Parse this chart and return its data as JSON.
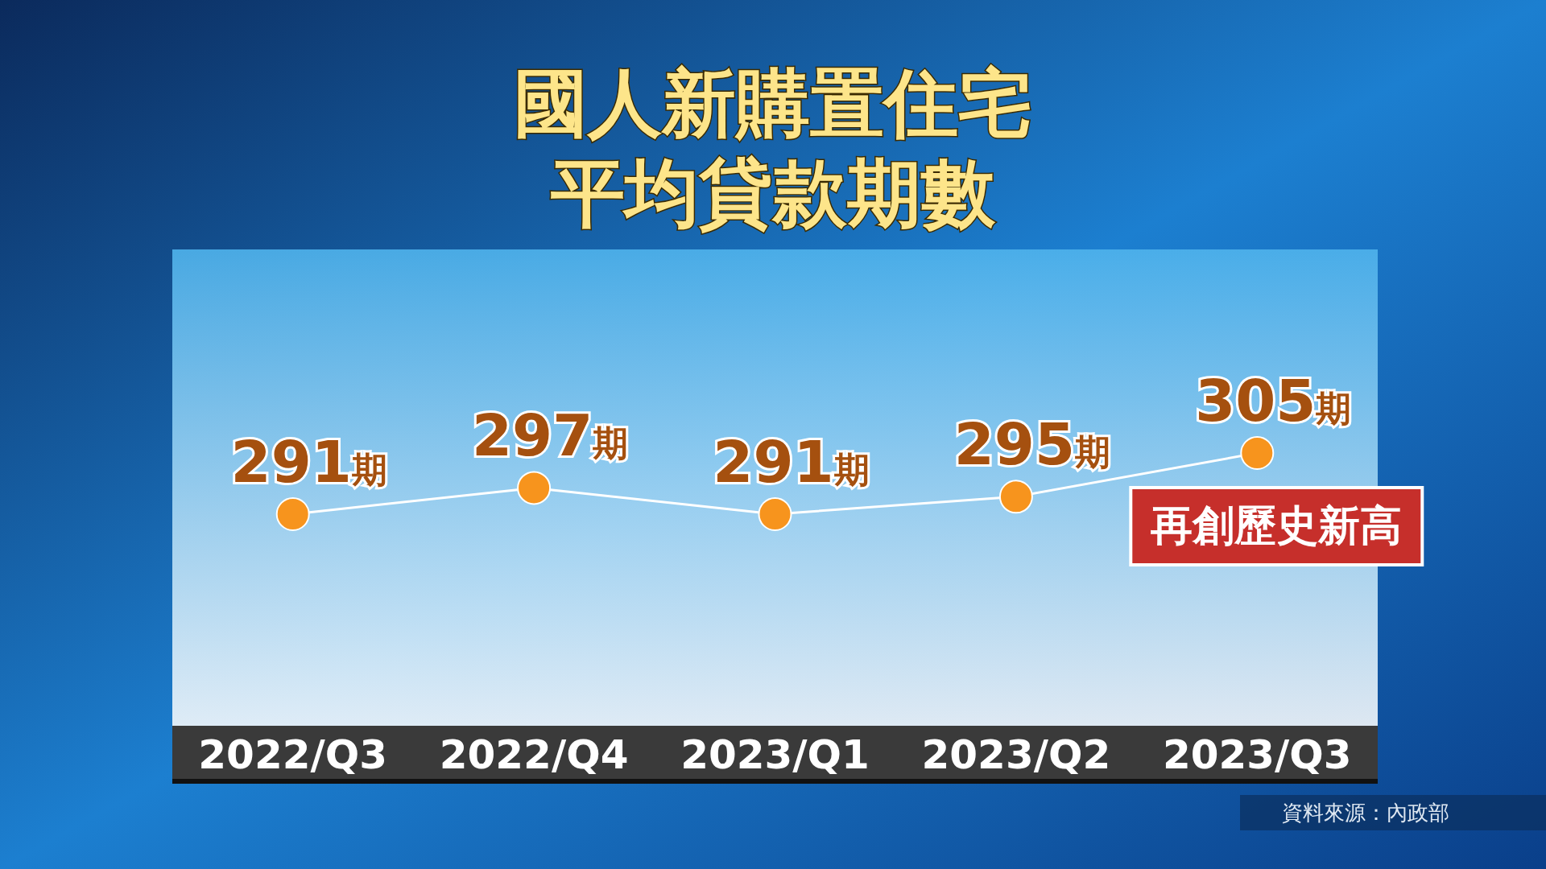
{
  "chart_data": {
    "type": "line",
    "title": "國人新購置住宅平均貸款期數",
    "categories": [
      "2022/Q3",
      "2022/Q4",
      "2023/Q1",
      "2023/Q2",
      "2023/Q3"
    ],
    "series": [
      {
        "color": "#f7941d",
        "values": [
          291,
          297,
          291,
          295,
          305
        ],
        "value_labels": [
          "291期",
          "297期",
          "291期",
          "295期",
          "305期"
        ]
      }
    ],
    "marker": "circle",
    "line_style": "solid",
    "annotations": [
      {
        "text": "再創歷史新高",
        "x": "2023/Q3",
        "y": 305
      },
      "資料來源：內政部"
    ]
  }
}
